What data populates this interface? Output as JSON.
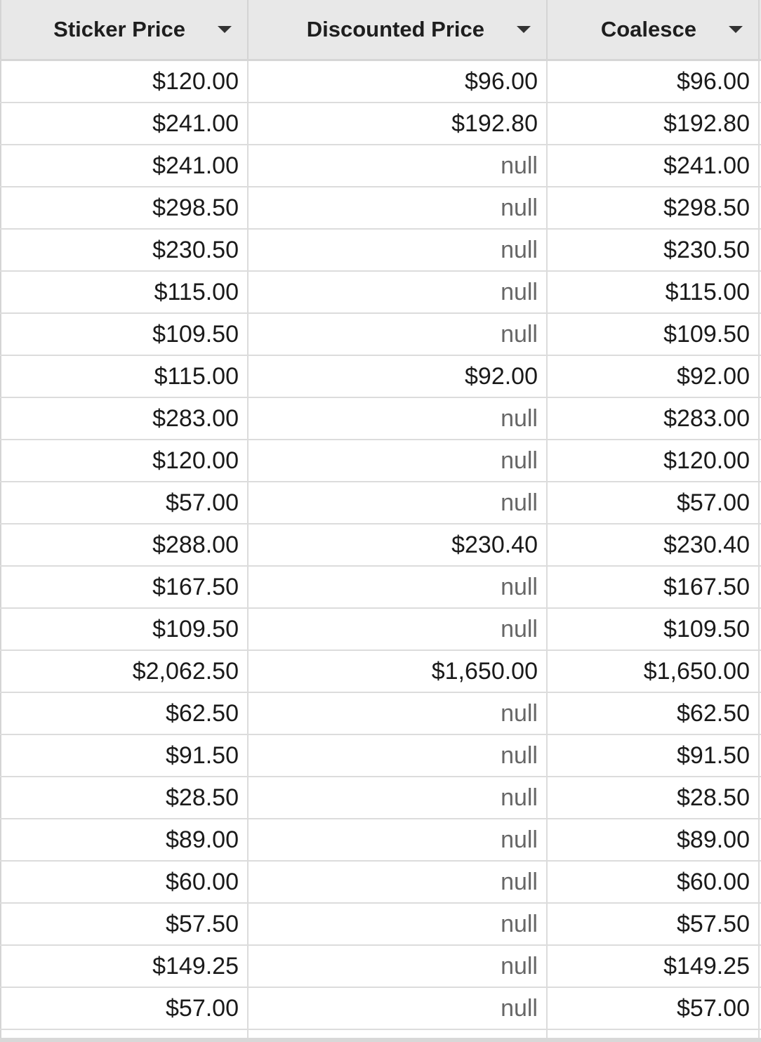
{
  "columns": [
    {
      "label": "Sticker Price",
      "icon": "dropdown-arrow-icon"
    },
    {
      "label": "Discounted Price",
      "icon": "dropdown-arrow-icon"
    },
    {
      "label": "Coalesce",
      "icon": "dropdown-arrow-icon"
    }
  ],
  "rows": [
    [
      "$120.00",
      "$96.00",
      "$96.00"
    ],
    [
      "$241.00",
      "$192.80",
      "$192.80"
    ],
    [
      "$241.00",
      "null",
      "$241.00"
    ],
    [
      "$298.50",
      "null",
      "$298.50"
    ],
    [
      "$230.50",
      "null",
      "$230.50"
    ],
    [
      "$115.00",
      "null",
      "$115.00"
    ],
    [
      "$109.50",
      "null",
      "$109.50"
    ],
    [
      "$115.00",
      "$92.00",
      "$92.00"
    ],
    [
      "$283.00",
      "null",
      "$283.00"
    ],
    [
      "$120.00",
      "null",
      "$120.00"
    ],
    [
      "$57.00",
      "null",
      "$57.00"
    ],
    [
      "$288.00",
      "$230.40",
      "$230.40"
    ],
    [
      "$167.50",
      "null",
      "$167.50"
    ],
    [
      "$109.50",
      "null",
      "$109.50"
    ],
    [
      "$2,062.50",
      "$1,650.00",
      "$1,650.00"
    ],
    [
      "$62.50",
      "null",
      "$62.50"
    ],
    [
      "$91.50",
      "null",
      "$91.50"
    ],
    [
      "$28.50",
      "null",
      "$28.50"
    ],
    [
      "$89.00",
      "null",
      "$89.00"
    ],
    [
      "$60.00",
      "null",
      "$60.00"
    ],
    [
      "$57.50",
      "null",
      "$57.50"
    ],
    [
      "$149.25",
      "null",
      "$149.25"
    ],
    [
      "$57.00",
      "null",
      "$57.00"
    ]
  ]
}
